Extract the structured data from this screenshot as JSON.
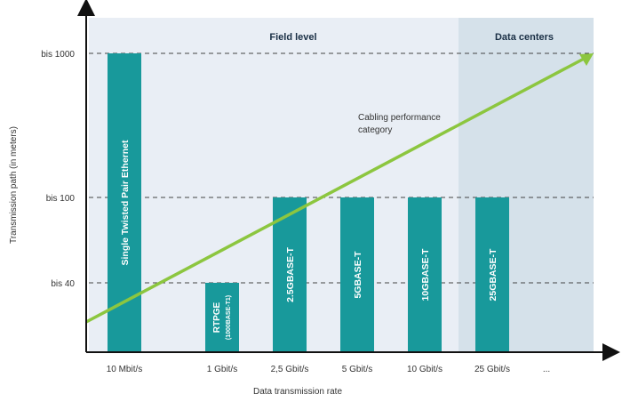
{
  "chart_data": {
    "type": "bar",
    "xlabel": "Data transmission rate",
    "ylabel": "Transmission path (in meters)",
    "y_ticks": [
      "bis 1000",
      "bis 100",
      "bis 40"
    ],
    "categories": [
      "10 Mbit/s",
      "1 Gbit/s",
      "2,5 Gbit/s",
      "5 Gbit/s",
      "10 Gbit/s",
      "25 Gbit/s",
      "..."
    ],
    "bars": [
      {
        "category": "10 Mbit/s",
        "label": "Single Twisted Pair Ethernet",
        "value": "bis 1000"
      },
      {
        "category": "1 Gbit/s",
        "label": "RTPGE",
        "sublabel": "(1000BASE-T1)",
        "value": "bis 40"
      },
      {
        "category": "2,5 Gbit/s",
        "label": "2.5GBASE-T",
        "value": "bis 100"
      },
      {
        "category": "5 Gbit/s",
        "label": "5GBASE-T",
        "value": "bis 100"
      },
      {
        "category": "10 Gbit/s",
        "label": "10GBASE-T",
        "value": "bis 100"
      },
      {
        "category": "25 Gbit/s",
        "label": "25GBASE-T",
        "value": "bis 100"
      }
    ],
    "regions": [
      {
        "label": "Field level",
        "from": "10 Mbit/s",
        "to": "10 Gbit/s"
      },
      {
        "label": "Data centers",
        "from": "25 Gbit/s",
        "to": "..."
      }
    ],
    "trend_label": "Cabling performance category",
    "grid": "dashed horizontal at tick levels",
    "colors": {
      "bar": "#18999b",
      "trend": "#8cc63f",
      "field_bg": "#e9eef5",
      "datacenter_bg": "#d5e1ea",
      "axis": "#111111",
      "grid": "#444444"
    }
  }
}
